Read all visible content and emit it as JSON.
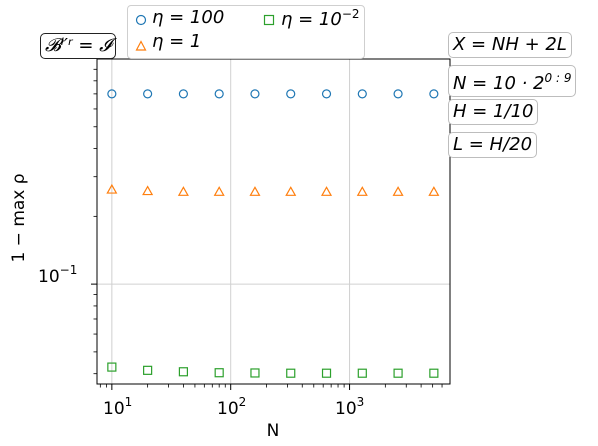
{
  "chart_data": {
    "type": "scatter",
    "x_scale": "log",
    "y_scale": "log",
    "xlabel": "N",
    "ylabel": "1 − max ρ",
    "xlim": [
      7.5,
      7000
    ],
    "ylim": [
      0.036,
      1.0
    ],
    "grid": true,
    "x_ticks": [
      {
        "base": "10",
        "exp": "1"
      },
      {
        "base": "10",
        "exp": "2"
      },
      {
        "base": "10",
        "exp": "3"
      }
    ],
    "y_tick_label": {
      "base": "10",
      "exp": "−1"
    },
    "x": [
      10,
      20,
      40,
      80,
      160,
      320,
      640,
      1280,
      2560,
      5120
    ],
    "series": [
      {
        "name": "η = 100",
        "marker": "circle",
        "color": "#1f77b4",
        "values": [
          0.7,
          0.7,
          0.7,
          0.7,
          0.7,
          0.7,
          0.7,
          0.7,
          0.7,
          0.7
        ]
      },
      {
        "name": "η = 1",
        "marker": "triangle",
        "color": "#ff7f0e",
        "values": [
          0.263,
          0.259,
          0.257,
          0.257,
          0.257,
          0.257,
          0.257,
          0.257,
          0.257,
          0.257
        ]
      },
      {
        "name": "η = 10^−2",
        "marker": "square",
        "color": "#2ca02c",
        "values": [
          0.0428,
          0.0414,
          0.0408,
          0.0404,
          0.0403,
          0.0402,
          0.0402,
          0.0402,
          0.0402,
          0.0402
        ]
      }
    ],
    "legend_position": "top"
  },
  "labels": {
    "boundary": "𝓑ˡ′ʳ = 𝓘",
    "x_def": "X = NH + 2L",
    "n_def_base": "N = 10 · 2",
    "n_def_exp": "0 : 9",
    "h_def": "H = 1/10",
    "l_def": "L = H/20"
  },
  "legend": {
    "eta100": "η = 100",
    "eta1": "η = 1",
    "eta_small_base": "η = 10",
    "eta_small_exp": "−2"
  }
}
